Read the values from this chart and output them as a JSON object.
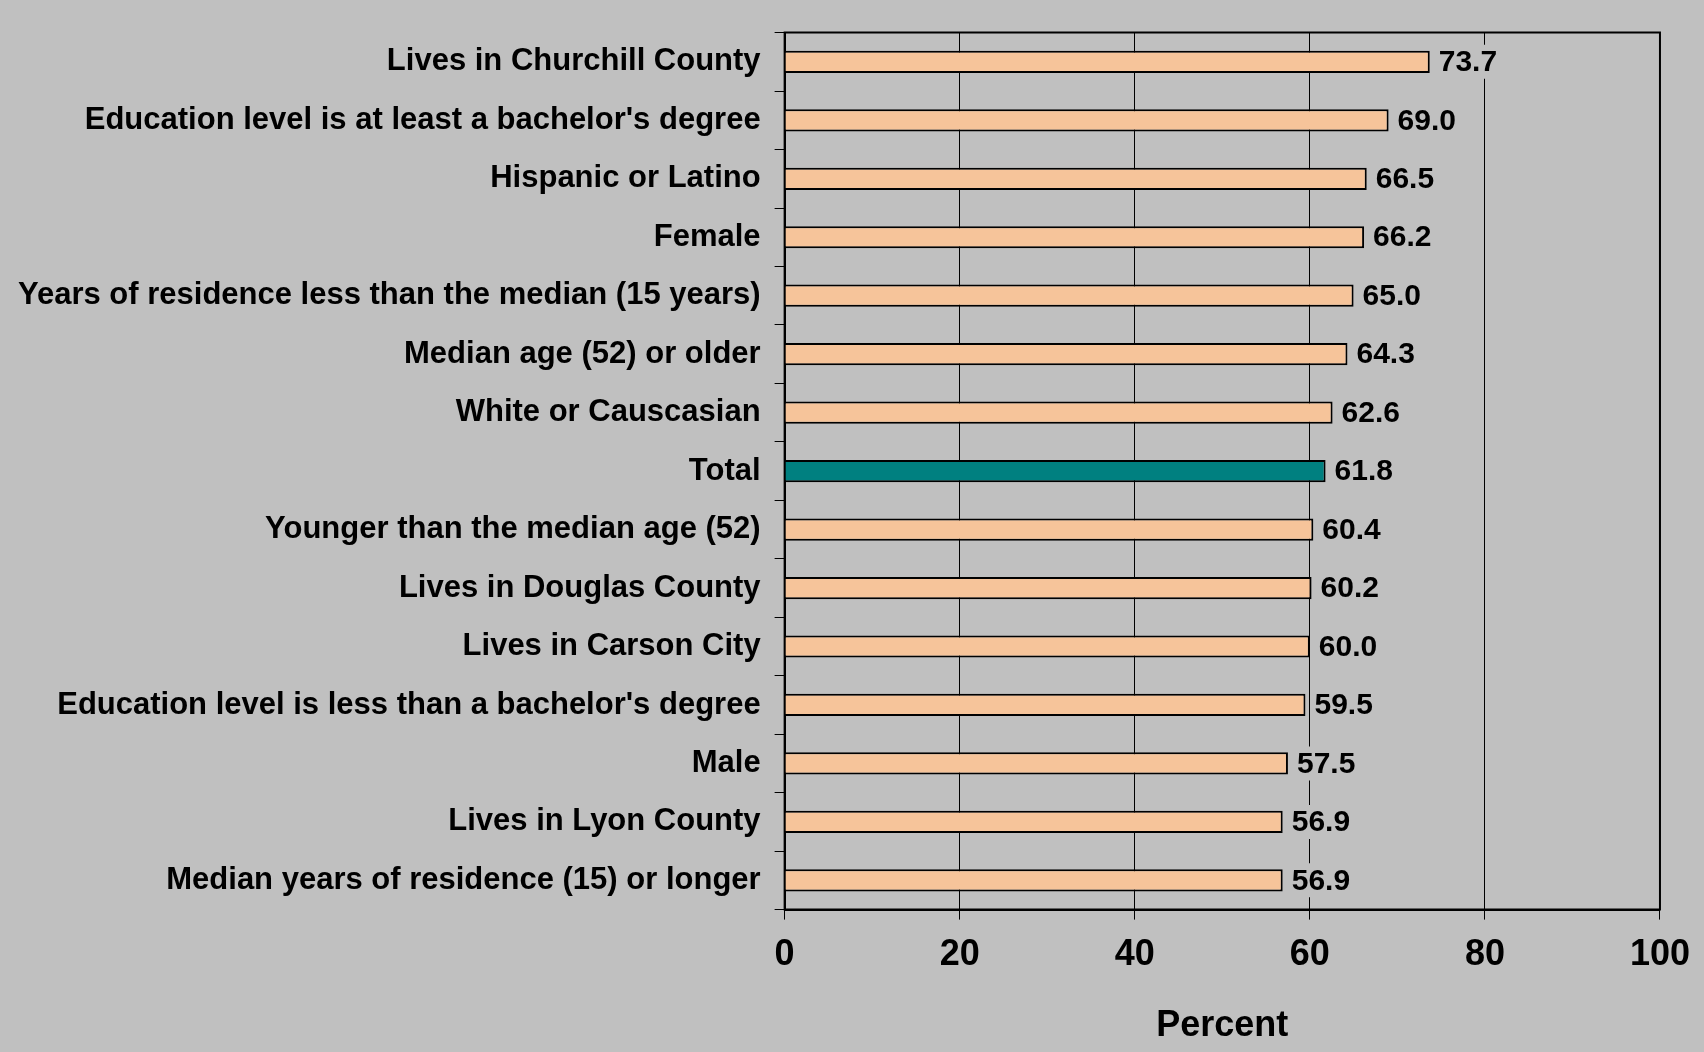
{
  "chart_data": {
    "type": "bar",
    "orientation": "horizontal",
    "xlabel": "Percent",
    "categories": [
      "Lives in Churchill County",
      "Education level is at least a bachelor's degree",
      "Hispanic or Latino",
      "Female",
      "Years of residence less than the median (15 years)",
      "Median age (52) or older",
      "White or Causcasian",
      "Total",
      "Younger than the median age (52)",
      "Lives in Douglas County",
      "Lives in Carson City",
      "Education level is less than a bachelor's degree",
      "Male",
      "Lives in Lyon County",
      "Median years of residence (15) or longer"
    ],
    "values": [
      73.7,
      69.0,
      66.5,
      66.2,
      65.0,
      64.3,
      62.6,
      61.8,
      60.4,
      60.2,
      60.0,
      59.5,
      57.5,
      56.9,
      56.9
    ],
    "value_labels": [
      "73.7",
      "69.0",
      "66.5",
      "66.2",
      "65.0",
      "64.3",
      "62.6",
      "61.8",
      "60.4",
      "60.2",
      "60.0",
      "59.5",
      "57.5",
      "56.9",
      "56.9"
    ],
    "colors": [
      "#f6c49a",
      "#f6c49a",
      "#f6c49a",
      "#f6c49a",
      "#f6c49a",
      "#f6c49a",
      "#f6c49a",
      "#008080",
      "#f6c49a",
      "#f6c49a",
      "#f6c49a",
      "#f6c49a",
      "#f6c49a",
      "#f6c49a",
      "#f6c49a"
    ],
    "xlim": [
      0,
      100
    ],
    "xticks": [
      0,
      20,
      40,
      60,
      80,
      100
    ],
    "grid": "x",
    "legend": false
  }
}
